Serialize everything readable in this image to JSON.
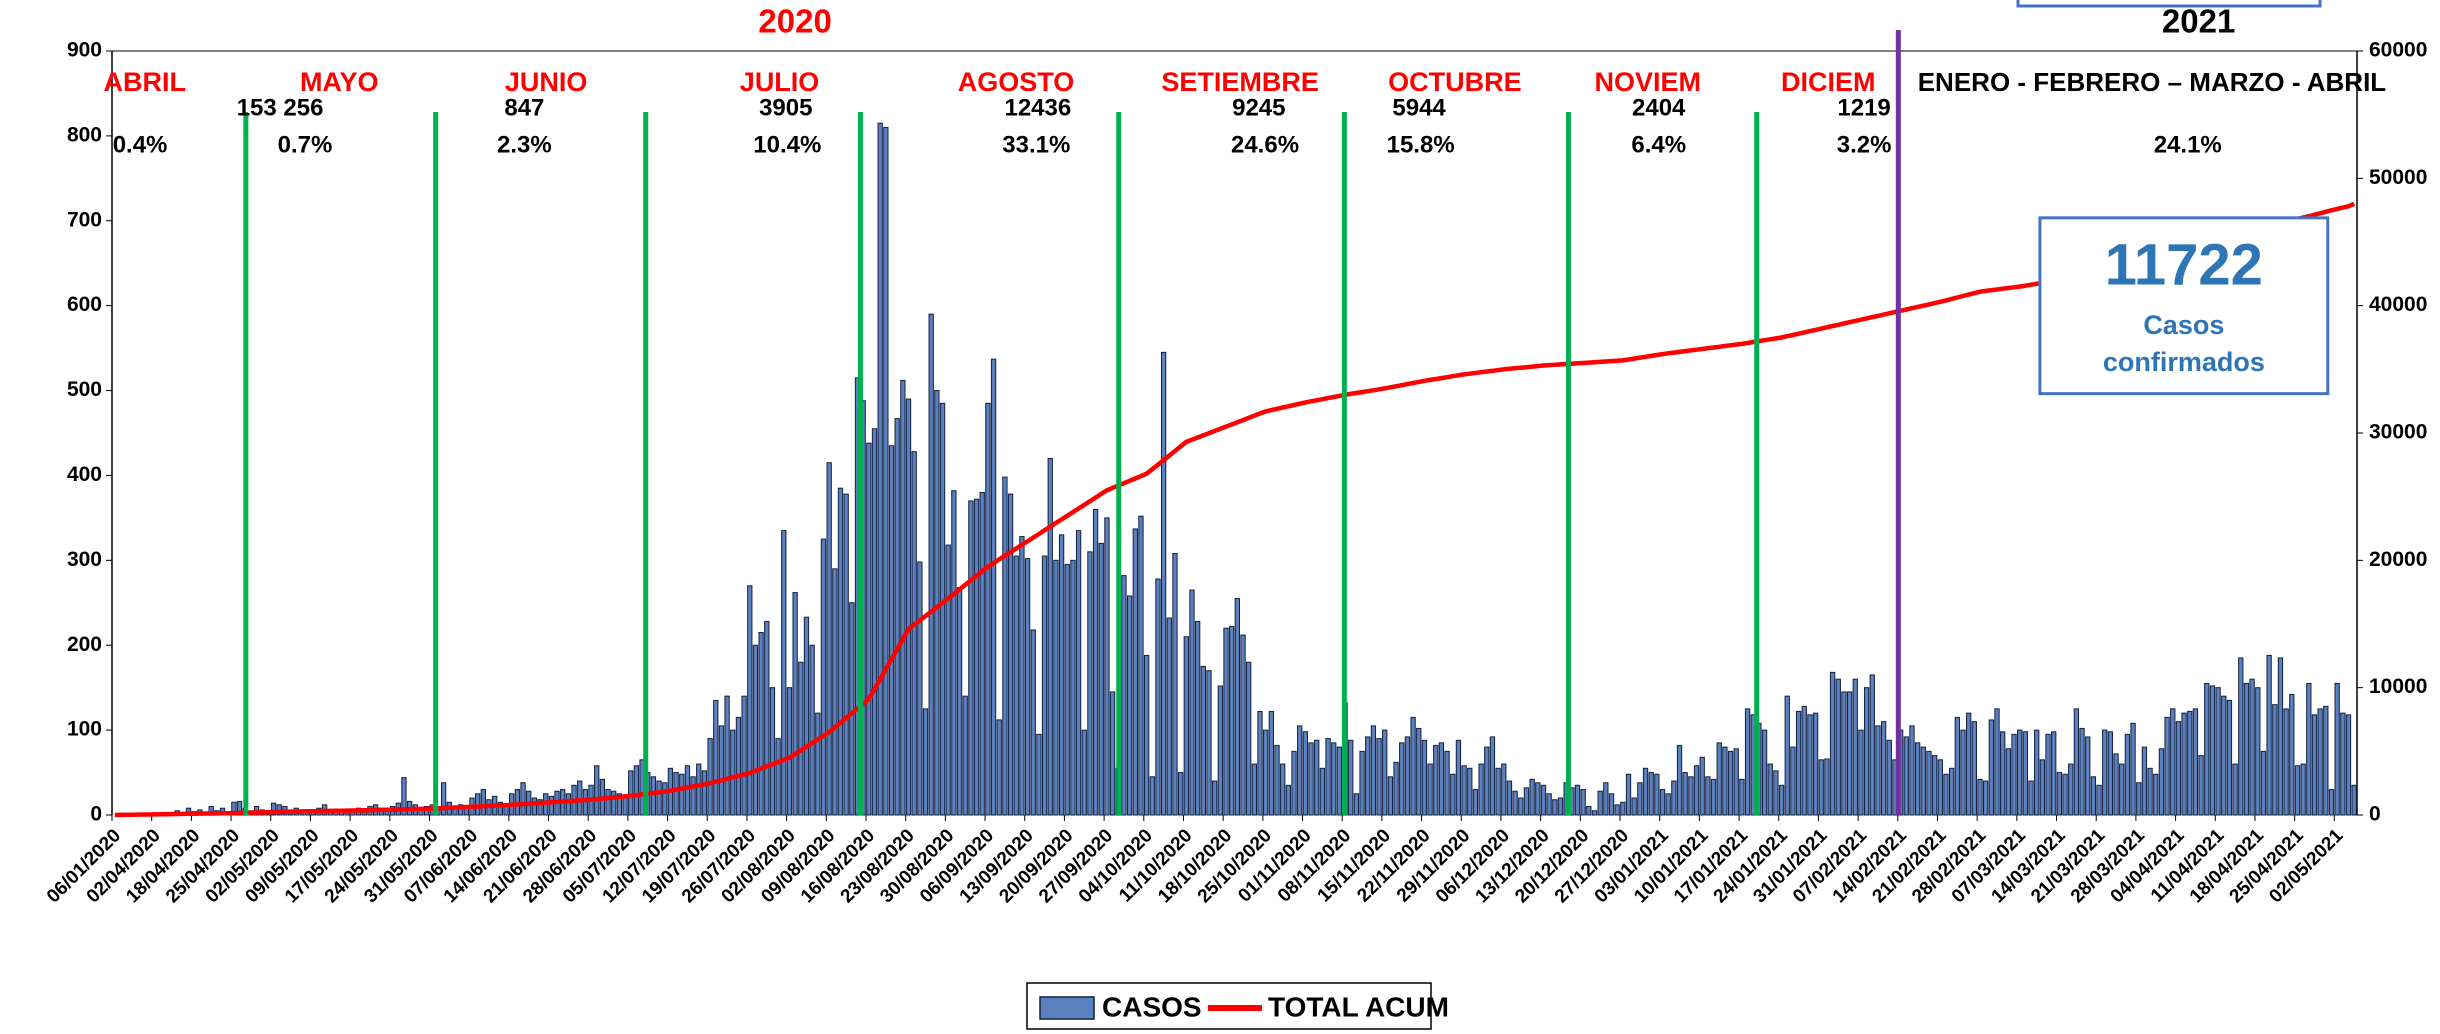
{
  "chart_data": {
    "type": "bar_line",
    "year_labels": [
      "2020",
      "2021"
    ],
    "months": [
      {
        "name": "ABRIL",
        "cases": 153,
        "share": "0.4%"
      },
      {
        "name": "MAYO",
        "cases": 256,
        "share": "0.7%"
      },
      {
        "name": "JUNIO",
        "cases": 847,
        "share": "2.3%"
      },
      {
        "name": "JULIO",
        "cases": 3905,
        "share": "10.4%"
      },
      {
        "name": "AGOSTO",
        "cases": 12436,
        "share": "33.1%"
      },
      {
        "name": "SETIEMBRE",
        "cases": 9245,
        "share": "24.6%"
      },
      {
        "name": "OCTUBRE",
        "cases": 5944,
        "share": "15.8%"
      },
      {
        "name": "NOVIEM",
        "cases": 2404,
        "share": "6.4%"
      },
      {
        "name": "DICIEM",
        "cases": 1219,
        "share": "3.2%"
      },
      {
        "name": "ENERO -  FEBRERO – MARZO - ABRIL",
        "share": "24.1%"
      }
    ],
    "callout": {
      "value": 11722,
      "lines": [
        "Casos",
        "confirmados"
      ]
    },
    "categories": [
      "06/01/2020",
      null,
      null,
      null,
      null,
      null,
      null,
      "02/04/2020",
      null,
      null,
      null,
      null,
      null,
      null,
      "18/04/2020",
      null,
      null,
      null,
      null,
      null,
      null,
      "25/04/2020",
      null,
      null,
      null,
      null,
      null,
      null,
      "02/05/2020",
      null,
      null,
      null,
      null,
      null,
      null,
      "09/05/2020",
      null,
      null,
      null,
      null,
      null,
      null,
      "17/05/2020",
      null,
      null,
      null,
      null,
      null,
      null,
      "24/05/2020",
      null,
      null,
      null,
      null,
      null,
      null,
      "31/05/2020",
      null,
      null,
      null,
      null,
      null,
      null,
      "07/06/2020",
      null,
      null,
      null,
      null,
      null,
      null,
      "14/06/2020",
      null,
      null,
      null,
      null,
      null,
      null,
      "21/06/2020",
      null,
      null,
      null,
      null,
      null,
      null,
      "28/06/2020",
      null,
      null,
      null,
      null,
      null,
      null,
      "05/07/2020",
      null,
      null,
      null,
      null,
      null,
      null,
      "12/07/2020",
      null,
      null,
      null,
      null,
      null,
      null,
      "19/07/2020",
      null,
      null,
      null,
      null,
      null,
      null,
      "26/07/2020",
      null,
      null,
      null,
      null,
      null,
      null,
      "02/08/2020",
      null,
      null,
      null,
      null,
      null,
      null,
      "09/08/2020",
      null,
      null,
      null,
      null,
      null,
      null,
      "16/08/2020",
      null,
      null,
      null,
      null,
      null,
      null,
      "23/08/2020",
      null,
      null,
      null,
      null,
      null,
      null,
      "30/08/2020",
      null,
      null,
      null,
      null,
      null,
      null,
      "06/09/2020",
      null,
      null,
      null,
      null,
      null,
      null,
      "13/09/2020",
      null,
      null,
      null,
      null,
      null,
      null,
      "20/09/2020",
      null,
      null,
      null,
      null,
      null,
      null,
      "27/09/2020",
      null,
      null,
      null,
      null,
      null,
      null,
      "04/10/2020",
      null,
      null,
      null,
      null,
      null,
      null,
      "11/10/2020",
      null,
      null,
      null,
      null,
      null,
      null,
      "18/10/2020",
      null,
      null,
      null,
      null,
      null,
      null,
      "25/10/2020",
      null,
      null,
      null,
      null,
      null,
      null,
      "01/11/2020",
      null,
      null,
      null,
      null,
      null,
      null,
      "08/11/2020",
      null,
      null,
      null,
      null,
      null,
      null,
      "15/11/2020",
      null,
      null,
      null,
      null,
      null,
      null,
      "22/11/2020",
      null,
      null,
      null,
      null,
      null,
      null,
      "29/11/2020",
      null,
      null,
      null,
      null,
      null,
      null,
      "06/12/2020",
      null,
      null,
      null,
      null,
      null,
      null,
      "13/12/2020",
      null,
      null,
      null,
      null,
      null,
      null,
      "20/12/2020",
      null,
      null,
      null,
      null,
      null,
      null,
      "27/12/2020",
      null,
      null,
      null,
      null,
      null,
      null,
      "03/01/2021",
      null,
      null,
      null,
      null,
      null,
      null,
      "10/01/2021",
      null,
      null,
      null,
      null,
      null,
      null,
      "17/01/2021",
      null,
      null,
      null,
      null,
      null,
      null,
      "24/01/2021",
      null,
      null,
      null,
      null,
      null,
      null,
      "31/01/2021",
      null,
      null,
      null,
      null,
      null,
      null,
      "07/02/2021",
      null,
      null,
      null,
      null,
      null,
      null,
      "14/02/2021",
      null,
      null,
      null,
      null,
      null,
      null,
      "21/02/2021",
      null,
      null,
      null,
      null,
      null,
      null,
      "28/02/2021",
      null,
      null,
      null,
      null,
      null,
      null,
      "07/03/2021",
      null,
      null,
      null,
      null,
      null,
      null,
      "14/03/2021",
      null,
      null,
      null,
      null,
      null,
      null,
      "21/03/2021",
      null,
      null,
      null,
      null,
      null,
      null,
      "28/03/2021",
      null,
      null,
      null,
      null,
      null,
      null,
      "04/04/2021",
      null,
      null,
      null,
      null,
      null,
      null,
      "11/04/2021",
      null,
      null,
      null,
      null,
      null,
      null,
      "18/04/2021",
      null,
      null,
      null,
      null,
      null,
      null,
      "25/04/2021",
      null,
      null,
      null,
      null,
      null,
      null,
      "02/05/2021",
      null,
      null,
      null
    ],
    "series": [
      {
        "name": "CASOS",
        "type": "bar",
        "axis": "y",
        "color": "#5a80c0",
        "stroke": "#14213d",
        "values": [
          0,
          0,
          0,
          0,
          0,
          0,
          1,
          2,
          1,
          3,
          2,
          5,
          3,
          8,
          4,
          6,
          3,
          10,
          5,
          8,
          4,
          15,
          16,
          8,
          5,
          10,
          6,
          4,
          14,
          12,
          10,
          6,
          8,
          5,
          4,
          6,
          8,
          12,
          5,
          4,
          6,
          3,
          5,
          8,
          6,
          10,
          12,
          8,
          6,
          10,
          14,
          44,
          16,
          12,
          8,
          10,
          12,
          10,
          38,
          15,
          8,
          12,
          10,
          20,
          25,
          30,
          18,
          22,
          15,
          12,
          25,
          30,
          38,
          28,
          20,
          18,
          25,
          22,
          28,
          30,
          25,
          35,
          40,
          30,
          35,
          58,
          42,
          30,
          28,
          25,
          22,
          52,
          58,
          65,
          50,
          45,
          40,
          38,
          55,
          50,
          48,
          58,
          45,
          60,
          52,
          90,
          135,
          105,
          140,
          100,
          115,
          140,
          270,
          200,
          215,
          228,
          150,
          90,
          335,
          150,
          262,
          180,
          233,
          200,
          120,
          325,
          415,
          290,
          385,
          378,
          250,
          515,
          488,
          438,
          455,
          815,
          810,
          435,
          467,
          512,
          490,
          428,
          298,
          125,
          590,
          500,
          485,
          318,
          382,
          268,
          140,
          370,
          372,
          380,
          485,
          537,
          112,
          398,
          378,
          305,
          328,
          302,
          218,
          95,
          305,
          420,
          300,
          330,
          295,
          300,
          335,
          100,
          310,
          360,
          320,
          350,
          145,
          55,
          282,
          258,
          337,
          352,
          188,
          45,
          278,
          545,
          232,
          308,
          50,
          210,
          265,
          228,
          175,
          170,
          40,
          152,
          220,
          222,
          255,
          212,
          180,
          60,
          122,
          100,
          122,
          82,
          60,
          35,
          75,
          105,
          98,
          85,
          88,
          55,
          90,
          85,
          80,
          132,
          88,
          25,
          75,
          92,
          105,
          90,
          100,
          45,
          62,
          85,
          92,
          115,
          102,
          88,
          60,
          82,
          85,
          75,
          48,
          88,
          58,
          55,
          30,
          60,
          80,
          92,
          55,
          60,
          40,
          28,
          20,
          32,
          42,
          38,
          35,
          25,
          18,
          20,
          38,
          32,
          35,
          30,
          10,
          5,
          28,
          38,
          25,
          12,
          15,
          48,
          20,
          38,
          55,
          50,
          48,
          30,
          25,
          40,
          82,
          50,
          45,
          58,
          68,
          45,
          42,
          85,
          80,
          75,
          78,
          42,
          125,
          118,
          108,
          100,
          60,
          52,
          35,
          140,
          80,
          122,
          128,
          118,
          120,
          65,
          66,
          168,
          160,
          145,
          145,
          160,
          100,
          150,
          165,
          105,
          110,
          88,
          65,
          100,
          92,
          105,
          85,
          80,
          75,
          70,
          65,
          48,
          55,
          115,
          100,
          120,
          110,
          42,
          40,
          112,
          125,
          98,
          78,
          95,
          100,
          98,
          40,
          100,
          65,
          95,
          98,
          50,
          48,
          60,
          125,
          102,
          92,
          45,
          35,
          100,
          98,
          72,
          60,
          95,
          108,
          38,
          80,
          55,
          48,
          78,
          115,
          125,
          110,
          120,
          122,
          125,
          70,
          155,
          152,
          150,
          140,
          135,
          60,
          185,
          155,
          160,
          150,
          75,
          188,
          130,
          185,
          125,
          142,
          58,
          60,
          155,
          118,
          125,
          128,
          30,
          155,
          120,
          118,
          35
        ]
      },
      {
        "name": "TOTAL ACUM",
        "type": "line",
        "axis": "y2",
        "color": "#ff0000",
        "values": [
          0,
          7,
          14,
          21,
          29,
          36,
          43,
          50,
          57,
          64,
          71,
          79,
          86,
          93,
          100,
          107,
          114,
          121,
          129,
          136,
          143,
          150,
          161,
          173,
          184,
          196,
          207,
          219,
          230,
          240,
          250,
          260,
          270,
          280,
          290,
          300,
          307,
          314,
          321,
          329,
          336,
          343,
          350,
          360,
          370,
          380,
          390,
          400,
          410,
          420,
          431,
          443,
          454,
          466,
          477,
          489,
          500,
          521,
          543,
          564,
          586,
          607,
          629,
          650,
          671,
          693,
          714,
          736,
          757,
          779,
          800,
          829,
          857,
          886,
          914,
          943,
          971,
          1000,
          1029,
          1057,
          1086,
          1114,
          1143,
          1171,
          1200,
          1243,
          1286,
          1329,
          1371,
          1414,
          1457,
          1500,
          1557,
          1614,
          1671,
          1729,
          1786,
          1843,
          1900,
          1986,
          2071,
          2157,
          2243,
          2329,
          2414,
          2500,
          2614,
          2729,
          2843,
          2957,
          3071,
          3186,
          3300,
          3471,
          3643,
          3814,
          3986,
          4157,
          4329,
          4500,
          4786,
          5071,
          5357,
          5643,
          5929,
          6214,
          6500,
          6871,
          7243,
          7614,
          7986,
          8357,
          8729,
          9100,
          9886,
          10671,
          11457,
          12243,
          13029,
          13814,
          14600,
          14943,
          15286,
          15629,
          15971,
          16314,
          16657,
          17000,
          17357,
          17714,
          18071,
          18429,
          18786,
          19143,
          19500,
          19786,
          20071,
          20357,
          20643,
          20929,
          21214,
          21500,
          21786,
          22071,
          22357,
          22643,
          22929,
          23214,
          23500,
          23786,
          24071,
          24357,
          24643,
          24929,
          25214,
          25500,
          25686,
          25871,
          26057,
          26243,
          26429,
          26614,
          26800,
          27157,
          27514,
          27871,
          28229,
          28586,
          28943,
          29300,
          29471,
          29643,
          29814,
          29986,
          30157,
          30329,
          30500,
          30671,
          30843,
          31014,
          31186,
          31357,
          31529,
          31700,
          31800,
          31900,
          32000,
          32100,
          32200,
          32300,
          32400,
          32486,
          32571,
          32657,
          32743,
          32829,
          32914,
          33000,
          33071,
          33143,
          33214,
          33286,
          33357,
          33429,
          33500,
          33586,
          33671,
          33757,
          33843,
          33929,
          34014,
          34100,
          34171,
          34243,
          34314,
          34386,
          34457,
          34529,
          34600,
          34657,
          34714,
          34771,
          34829,
          34886,
          34943,
          35000,
          35043,
          35086,
          35129,
          35171,
          35214,
          35257,
          35300,
          35329,
          35357,
          35386,
          35414,
          35443,
          35471,
          35500,
          35529,
          35557,
          35586,
          35614,
          35643,
          35671,
          35700,
          35771,
          35843,
          35914,
          35986,
          36057,
          36129,
          36200,
          36257,
          36314,
          36371,
          36429,
          36486,
          36543,
          36600,
          36657,
          36714,
          36771,
          36829,
          36886,
          36943,
          37000,
          37071,
          37143,
          37214,
          37286,
          37357,
          37429,
          37500,
          37600,
          37700,
          37800,
          37900,
          38000,
          38100,
          38200,
          38300,
          38400,
          38500,
          38600,
          38700,
          38800,
          38900,
          39000,
          39100,
          39200,
          39300,
          39400,
          39500,
          39600,
          39700,
          39800,
          39900,
          40000,
          40100,
          40200,
          40300,
          40414,
          40529,
          40643,
          40757,
          40871,
          40986,
          41100,
          41157,
          41214,
          41271,
          41329,
          41386,
          41443,
          41500,
          41571,
          41643,
          41714,
          41786,
          41857,
          41929,
          42000,
          42100,
          42200,
          42300,
          42400,
          42500,
          42600,
          42700,
          42814,
          42929,
          43043,
          43157,
          43271,
          43386,
          43500,
          43600,
          43700,
          43800,
          43900,
          44000,
          44100,
          44200,
          44314,
          44429,
          44543,
          44657,
          44771,
          44886,
          45000,
          45129,
          45257,
          45386,
          45514,
          45643,
          45771,
          45900,
          46029,
          46157,
          46286,
          46414,
          46543,
          46671,
          46800,
          46914,
          47029,
          47143,
          47257,
          47371,
          47486,
          47600,
          47700,
          47800,
          48000
        ]
      }
    ],
    "ylim": [
      0,
      900
    ],
    "yticks": [
      0,
      100,
      200,
      300,
      400,
      500,
      600,
      700,
      800,
      900
    ],
    "y2lim": [
      0,
      60000
    ],
    "y2ticks": [
      0,
      10000,
      20000,
      30000,
      40000,
      50000,
      60000
    ],
    "legend": "bottom"
  }
}
